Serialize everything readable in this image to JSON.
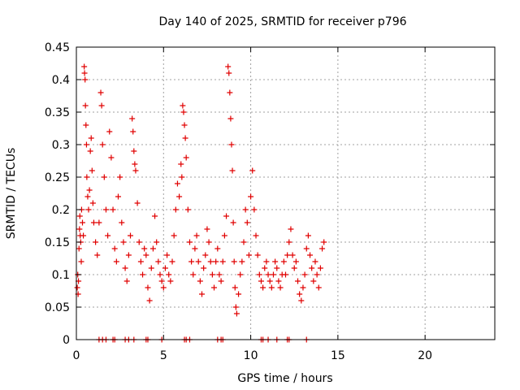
{
  "chart_data": {
    "type": "scatter",
    "title": "Day 140 of 2025, SRMTID for receiver p796",
    "xlabel": "GPS time / hours",
    "ylabel": "SRMTID / TECUs",
    "xlim": [
      0,
      24
    ],
    "ylim": [
      0,
      0.45
    ],
    "xticks": [
      0,
      5,
      10,
      15,
      20
    ],
    "xtick_labels": [
      "0",
      "5",
      "10",
      "15",
      "20"
    ],
    "yticks": [
      0,
      0.05,
      0.1,
      0.15,
      0.2,
      0.25,
      0.3,
      0.35,
      0.4,
      0.45
    ],
    "ytick_labels": [
      "0",
      "0.05",
      "0.1",
      "0.15",
      "0.2",
      "0.25",
      "0.3",
      "0.35",
      "0.4",
      "0.45"
    ],
    "grid": true,
    "marker": "+",
    "color": "#e00000",
    "series": [
      {
        "name": "SRMTID",
        "points": [
          [
            0.05,
            0.08
          ],
          [
            0.08,
            0.1
          ],
          [
            0.1,
            0.07
          ],
          [
            0.12,
            0.09
          ],
          [
            0.15,
            0.14
          ],
          [
            0.18,
            0.17
          ],
          [
            0.2,
            0.19
          ],
          [
            0.22,
            0.16
          ],
          [
            0.25,
            0.15
          ],
          [
            0.28,
            0.12
          ],
          [
            0.3,
            0.2
          ],
          [
            0.35,
            0.18
          ],
          [
            0.4,
            0.16
          ],
          [
            0.45,
            0.42
          ],
          [
            0.47,
            0.41
          ],
          [
            0.5,
            0.4
          ],
          [
            0.52,
            0.36
          ],
          [
            0.55,
            0.33
          ],
          [
            0.58,
            0.3
          ],
          [
            0.6,
            0.25
          ],
          [
            0.65,
            0.22
          ],
          [
            0.7,
            0.2
          ],
          [
            0.75,
            0.23
          ],
          [
            0.8,
            0.29
          ],
          [
            0.85,
            0.31
          ],
          [
            0.9,
            0.26
          ],
          [
            0.95,
            0.21
          ],
          [
            1.0,
            0.18
          ],
          [
            1.1,
            0.15
          ],
          [
            1.2,
            0.13
          ],
          [
            1.3,
            0.18
          ],
          [
            1.4,
            0.38
          ],
          [
            1.45,
            0.36
          ],
          [
            1.5,
            0.3
          ],
          [
            1.6,
            0.25
          ],
          [
            1.7,
            0.2
          ],
          [
            1.8,
            0.16
          ],
          [
            1.9,
            0.32
          ],
          [
            2.0,
            0.28
          ],
          [
            2.1,
            0.2
          ],
          [
            2.2,
            0.14
          ],
          [
            2.3,
            0.12
          ],
          [
            2.4,
            0.22
          ],
          [
            2.5,
            0.25
          ],
          [
            2.6,
            0.18
          ],
          [
            2.7,
            0.15
          ],
          [
            2.8,
            0.11
          ],
          [
            2.9,
            0.09
          ],
          [
            3.0,
            0.13
          ],
          [
            3.1,
            0.16
          ],
          [
            3.2,
            0.34
          ],
          [
            3.25,
            0.32
          ],
          [
            3.3,
            0.29
          ],
          [
            3.35,
            0.27
          ],
          [
            3.4,
            0.26
          ],
          [
            3.5,
            0.21
          ],
          [
            3.6,
            0.15
          ],
          [
            3.7,
            0.12
          ],
          [
            3.8,
            0.1
          ],
          [
            3.9,
            0.14
          ],
          [
            4.0,
            0.13
          ],
          [
            4.1,
            0.08
          ],
          [
            4.2,
            0.06
          ],
          [
            4.3,
            0.11
          ],
          [
            4.4,
            0.14
          ],
          [
            4.5,
            0.19
          ],
          [
            4.6,
            0.15
          ],
          [
            4.7,
            0.12
          ],
          [
            4.8,
            0.1
          ],
          [
            4.9,
            0.09
          ],
          [
            5.0,
            0.08
          ],
          [
            5.1,
            0.11
          ],
          [
            5.2,
            0.13
          ],
          [
            5.3,
            0.1
          ],
          [
            5.4,
            0.09
          ],
          [
            5.5,
            0.12
          ],
          [
            5.6,
            0.16
          ],
          [
            5.7,
            0.2
          ],
          [
            5.8,
            0.24
          ],
          [
            5.9,
            0.22
          ],
          [
            6.0,
            0.27
          ],
          [
            6.05,
            0.25
          ],
          [
            6.1,
            0.36
          ],
          [
            6.15,
            0.35
          ],
          [
            6.2,
            0.33
          ],
          [
            6.25,
            0.31
          ],
          [
            6.3,
            0.28
          ],
          [
            6.4,
            0.2
          ],
          [
            6.5,
            0.15
          ],
          [
            6.6,
            0.12
          ],
          [
            6.7,
            0.1
          ],
          [
            6.8,
            0.14
          ],
          [
            6.9,
            0.16
          ],
          [
            7.0,
            0.12
          ],
          [
            7.1,
            0.09
          ],
          [
            7.2,
            0.07
          ],
          [
            7.3,
            0.11
          ],
          [
            7.4,
            0.13
          ],
          [
            7.5,
            0.17
          ],
          [
            7.6,
            0.15
          ],
          [
            7.7,
            0.12
          ],
          [
            7.8,
            0.1
          ],
          [
            7.9,
            0.08
          ],
          [
            8.0,
            0.12
          ],
          [
            8.1,
            0.14
          ],
          [
            8.2,
            0.1
          ],
          [
            8.3,
            0.09
          ],
          [
            8.4,
            0.12
          ],
          [
            8.5,
            0.16
          ],
          [
            8.6,
            0.19
          ],
          [
            8.7,
            0.42
          ],
          [
            8.75,
            0.41
          ],
          [
            8.8,
            0.38
          ],
          [
            8.85,
            0.34
          ],
          [
            8.9,
            0.3
          ],
          [
            8.95,
            0.26
          ],
          [
            9.0,
            0.18
          ],
          [
            9.05,
            0.12
          ],
          [
            9.1,
            0.08
          ],
          [
            9.15,
            0.05
          ],
          [
            9.2,
            0.04
          ],
          [
            9.3,
            0.07
          ],
          [
            9.4,
            0.1
          ],
          [
            9.5,
            0.12
          ],
          [
            9.6,
            0.15
          ],
          [
            9.7,
            0.2
          ],
          [
            9.8,
            0.18
          ],
          [
            9.9,
            0.13
          ],
          [
            10.0,
            0.22
          ],
          [
            10.1,
            0.26
          ],
          [
            10.2,
            0.2
          ],
          [
            10.3,
            0.16
          ],
          [
            10.4,
            0.13
          ],
          [
            10.5,
            0.1
          ],
          [
            10.6,
            0.09
          ],
          [
            10.7,
            0.08
          ],
          [
            10.8,
            0.11
          ],
          [
            10.9,
            0.12
          ],
          [
            11.0,
            0.1
          ],
          [
            11.1,
            0.09
          ],
          [
            11.2,
            0.08
          ],
          [
            11.3,
            0.1
          ],
          [
            11.4,
            0.12
          ],
          [
            11.5,
            0.11
          ],
          [
            11.6,
            0.09
          ],
          [
            11.7,
            0.08
          ],
          [
            11.8,
            0.1
          ],
          [
            11.9,
            0.12
          ],
          [
            12.0,
            0.1
          ],
          [
            12.1,
            0.13
          ],
          [
            12.2,
            0.15
          ],
          [
            12.3,
            0.17
          ],
          [
            12.4,
            0.13
          ],
          [
            12.5,
            0.11
          ],
          [
            12.6,
            0.12
          ],
          [
            12.7,
            0.09
          ],
          [
            12.8,
            0.07
          ],
          [
            12.9,
            0.06
          ],
          [
            13.0,
            0.08
          ],
          [
            13.1,
            0.1
          ],
          [
            13.2,
            0.14
          ],
          [
            13.3,
            0.16
          ],
          [
            13.4,
            0.13
          ],
          [
            13.5,
            0.11
          ],
          [
            13.6,
            0.09
          ],
          [
            13.7,
            0.12
          ],
          [
            13.8,
            0.1
          ],
          [
            13.9,
            0.08
          ],
          [
            14.0,
            0.11
          ],
          [
            14.1,
            0.14
          ],
          [
            14.2,
            0.15
          ],
          [
            1.3,
            0
          ],
          [
            1.5,
            0
          ],
          [
            1.7,
            0
          ],
          [
            2.1,
            0
          ],
          [
            2.2,
            0
          ],
          [
            2.8,
            0
          ],
          [
            3.0,
            0
          ],
          [
            3.3,
            0
          ],
          [
            4.0,
            0
          ],
          [
            4.1,
            0
          ],
          [
            4.9,
            0
          ],
          [
            6.2,
            0
          ],
          [
            6.3,
            0
          ],
          [
            6.5,
            0
          ],
          [
            8.1,
            0
          ],
          [
            8.3,
            0
          ],
          [
            8.4,
            0
          ],
          [
            10.6,
            0
          ],
          [
            10.7,
            0
          ],
          [
            11.0,
            0
          ],
          [
            11.5,
            0
          ],
          [
            12.1,
            0
          ],
          [
            12.2,
            0
          ],
          [
            13.2,
            0
          ]
        ]
      }
    ]
  }
}
